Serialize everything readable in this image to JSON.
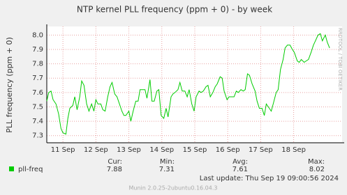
{
  "chart_data": {
    "type": "line",
    "title": "NTP kernel PLL frequency (ppm + 0) - by week",
    "y_label": "PLL frequency (ppm + 0)",
    "side_text": "RRDTOOL / TOBI OETIKER",
    "x": [
      10.51,
      10.57,
      10.64,
      10.7,
      10.79,
      10.87,
      10.94,
      11.0,
      11.09,
      11.15,
      11.21,
      11.3,
      11.36,
      11.43,
      11.51,
      11.57,
      11.64,
      11.72,
      11.79,
      11.87,
      11.94,
      12.0,
      12.06,
      12.15,
      12.21,
      12.28,
      12.36,
      12.43,
      12.49,
      12.57,
      12.64,
      12.7,
      12.79,
      12.85,
      12.91,
      13.0,
      13.06,
      13.13,
      13.21,
      13.28,
      13.34,
      13.43,
      13.49,
      13.55,
      13.64,
      13.7,
      13.77,
      13.85,
      13.91,
      13.98,
      14.06,
      14.13,
      14.19,
      14.28,
      14.34,
      14.4,
      14.49,
      14.55,
      14.62,
      14.7,
      14.77,
      14.83,
      14.91,
      14.98,
      15.04,
      15.13,
      15.19,
      15.26,
      15.34,
      15.4,
      15.47,
      15.55,
      15.62,
      15.68,
      15.77,
      15.83,
      15.89,
      15.98,
      16.04,
      16.11,
      16.19,
      16.26,
      16.32,
      16.4,
      16.47,
      16.53,
      16.6,
      16.66,
      16.74,
      16.83,
      16.89,
      16.96,
      17.04,
      17.11,
      17.17,
      17.26,
      17.32,
      17.38,
      17.47,
      17.53,
      17.6,
      17.68,
      17.74,
      17.81,
      17.89,
      17.96,
      18.02,
      18.11,
      18.17,
      18.23,
      18.32,
      18.38,
      18.45,
      18.53,
      18.6,
      18.66,
      18.74,
      18.81,
      18.87,
      18.96,
      19.02,
      19.09
    ],
    "series": [
      {
        "name": "pll-freq",
        "color": "#00cc00",
        "values": [
          7.54,
          7.6,
          7.61,
          7.55,
          7.52,
          7.45,
          7.35,
          7.32,
          7.31,
          7.42,
          7.49,
          7.51,
          7.57,
          7.48,
          7.57,
          7.68,
          7.65,
          7.52,
          7.47,
          7.52,
          7.47,
          7.55,
          7.52,
          7.52,
          7.48,
          7.47,
          7.57,
          7.64,
          7.67,
          7.59,
          7.57,
          7.53,
          7.47,
          7.44,
          7.44,
          7.47,
          7.4,
          7.47,
          7.54,
          7.54,
          7.62,
          7.62,
          7.62,
          7.56,
          7.69,
          7.54,
          7.54,
          7.61,
          7.62,
          7.44,
          7.42,
          7.49,
          7.43,
          7.57,
          7.59,
          7.6,
          7.62,
          7.67,
          7.61,
          7.61,
          7.57,
          7.62,
          7.52,
          7.47,
          7.57,
          7.61,
          7.6,
          7.61,
          7.64,
          7.65,
          7.57,
          7.6,
          7.64,
          7.66,
          7.71,
          7.7,
          7.61,
          7.55,
          7.57,
          7.57,
          7.57,
          7.61,
          7.6,
          7.62,
          7.61,
          7.62,
          7.73,
          7.72,
          7.66,
          7.61,
          7.54,
          7.49,
          7.49,
          7.44,
          7.52,
          7.49,
          7.47,
          7.52,
          7.6,
          7.62,
          7.76,
          7.83,
          7.91,
          7.93,
          7.93,
          7.9,
          7.88,
          7.82,
          7.81,
          7.83,
          7.81,
          7.82,
          7.83,
          7.88,
          7.93,
          7.96,
          8.0,
          8.01,
          7.96,
          8.0,
          7.95,
          7.91
        ],
        "stats": [
          7.88,
          7.31,
          7.61,
          8.02
        ]
      }
    ],
    "stat_labels": [
      "Cur:",
      "Min:",
      "Avg:",
      "Max:"
    ],
    "xlim": [
      10.51,
      19.47
    ],
    "xticks": [
      {
        "value": 11,
        "label": "11 Sep"
      },
      {
        "value": 12,
        "label": "12 Sep"
      },
      {
        "value": 13,
        "label": "13 Sep"
      },
      {
        "value": 14,
        "label": "14 Sep"
      },
      {
        "value": 15,
        "label": "15 Sep"
      },
      {
        "value": 16,
        "label": "16 Sep"
      },
      {
        "value": 17,
        "label": "17 Sep"
      },
      {
        "value": 18,
        "label": "18 Sep"
      }
    ],
    "ylim": [
      7.25,
      8.06
    ],
    "yticks": [
      7.3,
      7.4,
      7.5,
      7.6,
      7.7,
      7.8,
      7.9,
      {
        "value": 8,
        "label": "8.0"
      }
    ],
    "grid": true,
    "last_update": "Last update:  Thu Sep 19 09:00:56 2024",
    "footer": "Munin 2.0.25-2ubuntu0.16.04.3"
  }
}
